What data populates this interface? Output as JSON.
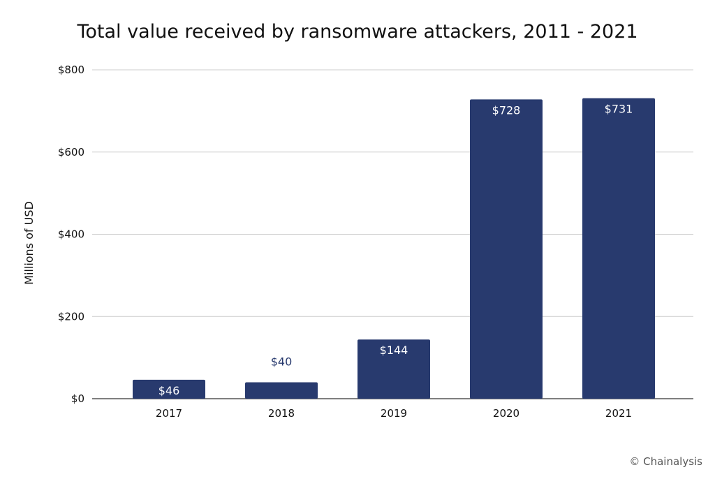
{
  "chart_data": {
    "type": "bar",
    "title": "Total value received by ransomware attackers, 2011 - 2021",
    "xlabel": "",
    "ylabel": "Millions of USD",
    "categories": [
      "2017",
      "2018",
      "2019",
      "2020",
      "2021"
    ],
    "values": [
      46,
      40,
      144,
      728,
      731
    ],
    "value_labels": [
      "$46",
      "$40",
      "$144",
      "$728",
      "$731"
    ],
    "ylim": [
      0,
      800
    ],
    "yticks": [
      0,
      200,
      400,
      600,
      800
    ],
    "ytick_labels": [
      "$0",
      "$200",
      "$400",
      "$600",
      "$800"
    ],
    "grid": true,
    "bar_color": "#283a6e",
    "label_inside_color": "#ffffff",
    "label_outside_color": "#283a6e"
  },
  "credit": "© Chainalysis"
}
